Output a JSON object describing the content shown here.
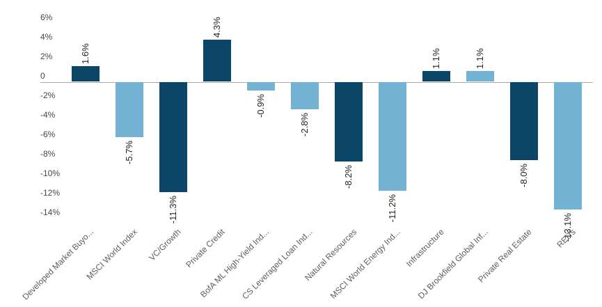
{
  "chart_data": {
    "type": "bar",
    "title": "",
    "xlabel": "",
    "ylabel": "",
    "categories": [
      "Developed Market Buyo...",
      "MSCI World Index",
      "VC/Growth",
      "Private Credit",
      "BofA ML High-Yield Ind...",
      "CS Leveraged Loan Ind...",
      "Natural Resources",
      "MSCI World Energy Ind...",
      "Infrastructure",
      "DJ Brookfield Global Inf...",
      "Private Real Estate",
      "REITs"
    ],
    "values": [
      1.6,
      -5.7,
      -11.3,
      4.3,
      -0.9,
      -2.8,
      -8.2,
      -11.2,
      1.1,
      1.1,
      -8.0,
      -13.1
    ],
    "value_labels": [
      "1.6%",
      "-5.7%",
      "-11.3%",
      "4.3%",
      "-0.9%",
      "-2.8%",
      "-8.2%",
      "-11.2%",
      "1.1%",
      "1.1%",
      "-8.0%",
      "-13.1%"
    ],
    "bar_color_keys": [
      "dark",
      "light",
      "dark",
      "dark",
      "light",
      "light",
      "dark",
      "light",
      "dark",
      "light",
      "dark",
      "light"
    ],
    "palette": {
      "dark": "#0b4568",
      "light": "#74b2d3"
    },
    "y_ticks": [
      {
        "label": "6%",
        "value": 6
      },
      {
        "label": "4%",
        "value": 4
      },
      {
        "label": "2%",
        "value": 2
      },
      {
        "label": "0",
        "value": 0
      },
      {
        "label": "-2%",
        "value": -2
      },
      {
        "label": "-4%",
        "value": -4
      },
      {
        "label": "-6%",
        "value": -6
      },
      {
        "label": "-8%",
        "value": -8
      },
      {
        "label": "-10%",
        "value": -10
      },
      {
        "label": "-12%",
        "value": -12
      },
      {
        "label": "-14%",
        "value": -14
      }
    ],
    "ylim": [
      -14,
      6
    ],
    "grid": false,
    "legend": "none",
    "axis_line_color": "#a8a8a8"
  }
}
